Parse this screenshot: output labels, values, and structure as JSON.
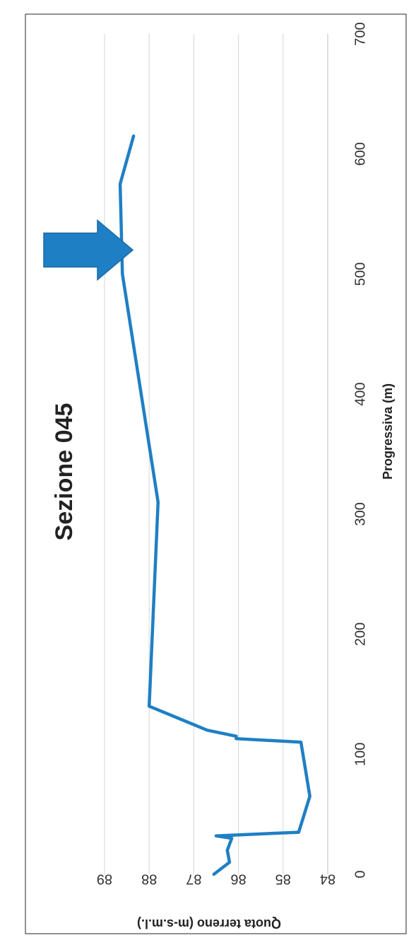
{
  "chart_data": {
    "type": "line",
    "title": "Sezione 045",
    "xlabel": "Progressiva (m)",
    "ylabel": "Quota terreno (m-s.m.l.)",
    "xlim": [
      0,
      700
    ],
    "ylim": [
      84,
      89
    ],
    "xticks": [
      "0",
      "100",
      "200",
      "300",
      "400",
      "500",
      "600",
      "700"
    ],
    "yticks": [
      "84",
      "85",
      "86",
      "87",
      "88",
      "89"
    ],
    "grid": true,
    "legend": "none",
    "orientation": "rotated-90-clockwise",
    "series": [
      {
        "color": "#1f7fc4",
        "x": [
          0,
          10,
          20,
          30,
          32,
          35,
          65,
          110,
          113,
          115,
          120,
          140,
          310,
          500,
          575,
          615
        ],
        "y": [
          86.55,
          86.2,
          86.25,
          86.15,
          86.5,
          84.65,
          84.4,
          84.6,
          86.05,
          86.05,
          86.7,
          88.0,
          87.8,
          88.6,
          88.65,
          88.35
        ]
      }
    ],
    "annotations": [
      {
        "type": "arrow",
        "x": 520,
        "color": "#1f7fc4"
      }
    ]
  }
}
